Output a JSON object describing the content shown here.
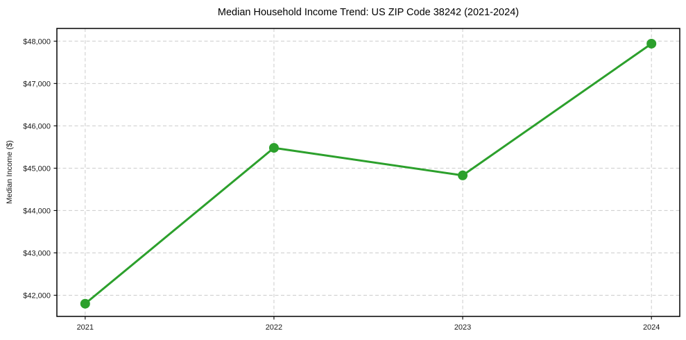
{
  "chart_data": {
    "type": "line",
    "title": "Median Household Income Trend: US ZIP Code 38242 (2021-2024)",
    "xlabel": "",
    "ylabel": "Median Income ($)",
    "categories": [
      "2021",
      "2022",
      "2023",
      "2024"
    ],
    "values": [
      41800,
      45480,
      44830,
      47940
    ],
    "yticks": [
      42000,
      43000,
      44000,
      45000,
      46000,
      47000,
      48000
    ],
    "ytick_labels": [
      "$42,000",
      "$43,000",
      "$44,000",
      "$45,000",
      "$46,000",
      "$47,000",
      "$48,000"
    ],
    "ylim": [
      41500,
      48300
    ],
    "xlim": [
      -0.15,
      3.15
    ],
    "grid": true,
    "legend": "none",
    "line_color": "#2ca02c",
    "marker_color": "#2ca02c",
    "marker_style": "circle",
    "grid_color": "#cccccc",
    "axis_color": "#000000",
    "text_color": "#1a1a1a",
    "background_color": "#ffffff"
  }
}
